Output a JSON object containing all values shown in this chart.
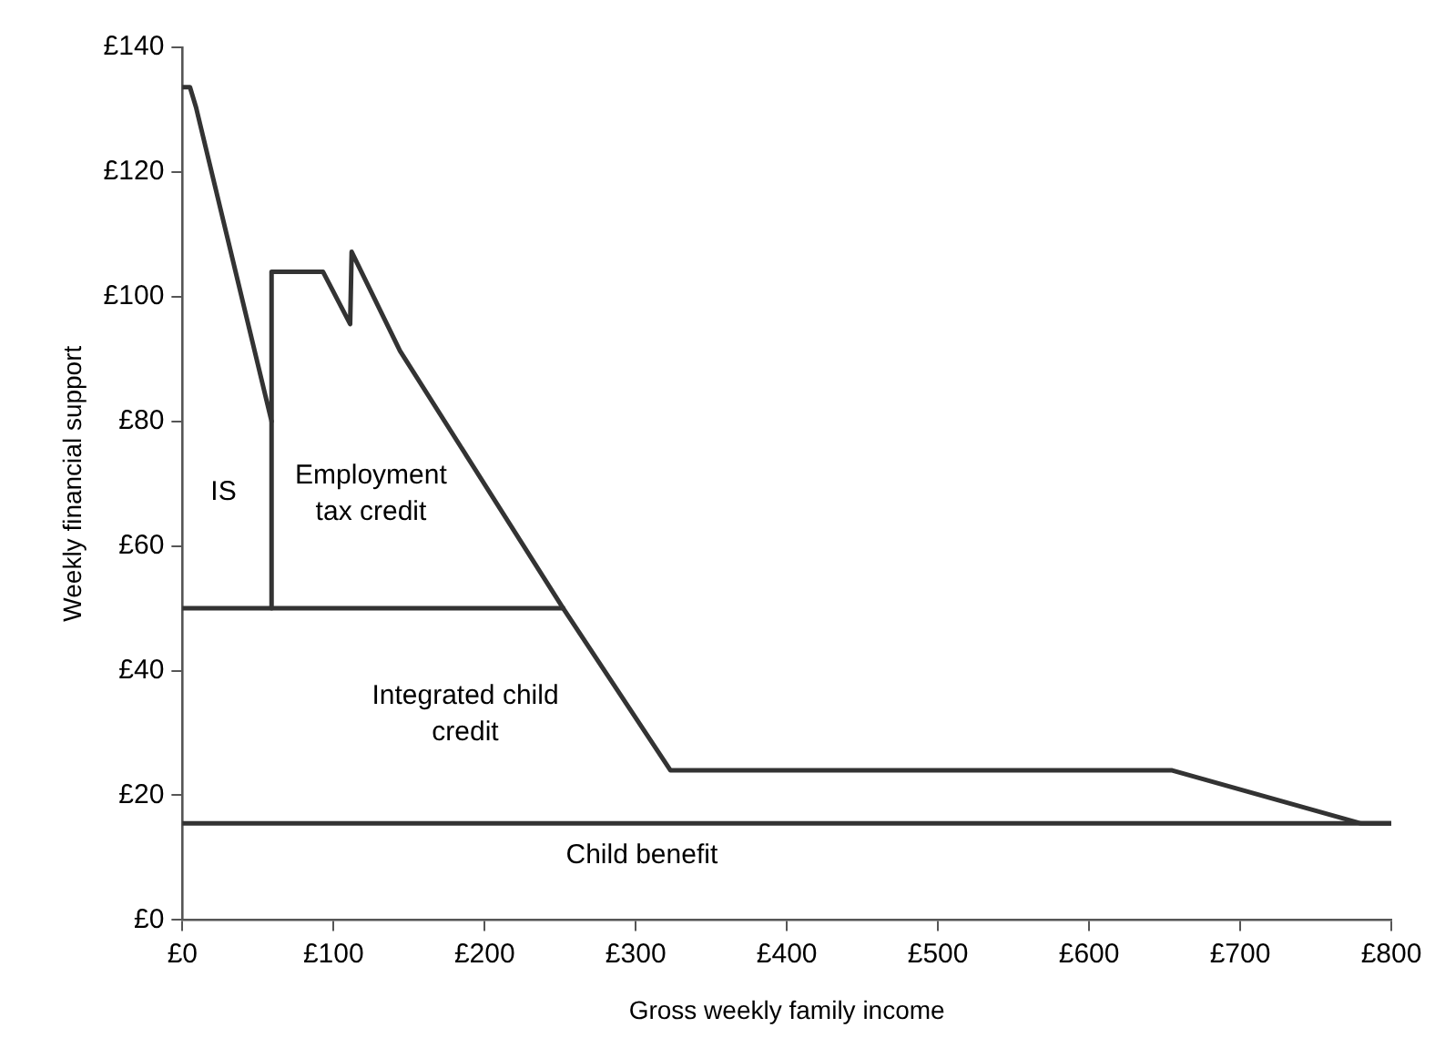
{
  "chart_data": {
    "type": "line",
    "xlabel": "Gross weekly family income",
    "ylabel": "Weekly financial support",
    "xlim": [
      0,
      800
    ],
    "ylim": [
      0,
      140
    ],
    "xticks": [
      {
        "value": 0,
        "label": "£0"
      },
      {
        "value": 100,
        "label": "£100"
      },
      {
        "value": 200,
        "label": "£200"
      },
      {
        "value": 300,
        "label": "£300"
      },
      {
        "value": 400,
        "label": "£400"
      },
      {
        "value": 500,
        "label": "£500"
      },
      {
        "value": 600,
        "label": "£600"
      },
      {
        "value": 700,
        "label": "£700"
      },
      {
        "value": 800,
        "label": "£800"
      }
    ],
    "yticks": [
      {
        "value": 0,
        "label": "£0"
      },
      {
        "value": 20,
        "label": "£20"
      },
      {
        "value": 40,
        "label": "£40"
      },
      {
        "value": 60,
        "label": "£60"
      },
      {
        "value": 80,
        "label": "£80"
      },
      {
        "value": 100,
        "label": "£100"
      },
      {
        "value": 120,
        "label": "£120"
      },
      {
        "value": 140,
        "label": "£140"
      }
    ],
    "grid": false,
    "legend": false,
    "marker": "none",
    "line_style": "solid",
    "series": [
      {
        "color": "#333333",
        "x": [
          0,
          5,
          9,
          59,
          59,
          93,
          111,
          112,
          144,
          252,
          323,
          655,
          780,
          800
        ],
        "values": [
          133.6,
          133.6,
          130.4,
          80,
          104,
          104,
          95.6,
          107.2,
          91.3,
          50,
          24,
          24,
          15.5,
          15.5
        ]
      },
      {
        "color": "#333333",
        "x": [
          59,
          59
        ],
        "values": [
          50,
          80
        ]
      },
      {
        "color": "#333333",
        "x": [
          0,
          252
        ],
        "values": [
          50,
          50
        ]
      },
      {
        "color": "#333333",
        "x": [
          0,
          800
        ],
        "values": [
          15.5,
          15.5
        ]
      }
    ],
    "annotations": [
      "IS",
      "Employment\ntax credit",
      "Integrated child\ncredit",
      "Child benefit"
    ]
  }
}
